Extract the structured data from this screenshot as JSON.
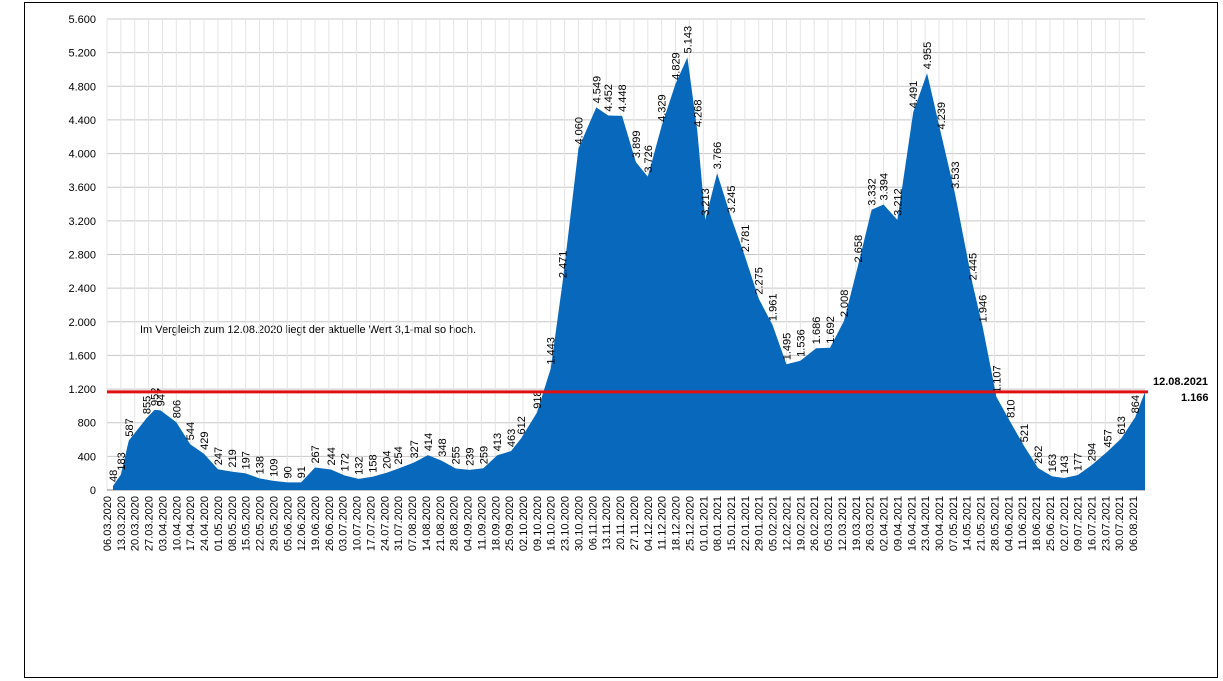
{
  "chart_data": {
    "type": "area",
    "annotation": "Im Vergleich zum 12.08.2020 liegt der aktuelle Wert 3,1-mal so hoch.",
    "end_date": "12.08.2021",
    "reference_line": {
      "color": "#e01010"
    },
    "x": [
      3,
      7,
      11,
      20,
      24,
      27,
      35,
      42,
      49,
      56,
      63,
      70,
      77,
      84,
      91,
      98,
      105,
      113,
      120,
      127,
      134,
      141,
      147,
      155,
      162,
      169,
      176,
      183,
      190,
      197,
      204,
      209,
      217,
      224,
      230,
      238,
      247,
      253,
      260,
      267,
      273,
      280,
      287,
      293,
      298,
      302,
      308,
      315,
      322,
      329,
      336,
      343,
      350,
      358,
      365,
      372,
      379,
      386,
      392,
      399,
      407,
      414,
      421,
      428,
      437,
      442,
      449,
      456,
      463,
      470,
      477,
      483,
      490,
      497,
      505,
      512,
      519,
      524
    ],
    "series": [
      {
        "color": "#0868bc",
        "values": [
          48,
          183,
          587,
          855,
          952,
          947,
          806,
          544,
          429,
          247,
          219,
          197,
          138,
          109,
          90,
          91,
          267,
          244,
          172,
          132,
          158,
          204,
          254,
          327,
          414,
          348,
          255,
          239,
          259,
          413,
          463,
          612,
          918,
          1443,
          2471,
          4060,
          4549,
          4452,
          4448,
          3899,
          3726,
          4329,
          4829,
          5143,
          4268,
          3213,
          3766,
          3245,
          2781,
          2275,
          1961,
          1495,
          1536,
          1686,
          1692,
          2008,
          2658,
          3332,
          3394,
          3212,
          4491,
          4955,
          4239,
          3533,
          2445,
          1946,
          1107,
          810,
          521,
          262,
          163,
          143,
          177,
          294,
          457,
          613,
          864,
          1166
        ],
        "value_labels": [
          "48",
          "183",
          "587",
          "855",
          "952",
          "947",
          "806",
          "544",
          "429",
          "247",
          "219",
          "197",
          "138",
          "109",
          "90",
          "91",
          "267",
          "244",
          "172",
          "132",
          "158",
          "204",
          "254",
          "327",
          "414",
          "348",
          "255",
          "239",
          "259",
          "413",
          "463",
          "612",
          "918",
          "1.443",
          "2.471",
          "4.060",
          "4.549",
          "4.452",
          "4.448",
          "3.899",
          "3.726",
          "4.329",
          "4.829",
          "5.143",
          "4.268",
          "3.213",
          "3.766",
          "3.245",
          "2.781",
          "2.275",
          "1.961",
          "1.495",
          "1.536",
          "1.686",
          "1.692",
          "2.008",
          "2.658",
          "3.332",
          "3.394",
          "3.212",
          "4.491",
          "4.955",
          "4.239",
          "3.533",
          "2.445",
          "1.946",
          "1.107",
          "810",
          "521",
          "262",
          "163",
          "143",
          "177",
          "294",
          "457",
          "613",
          "864",
          "1.166"
        ]
      }
    ],
    "xlim": [
      0,
      524
    ],
    "xticks": [
      {
        "value": 0,
        "label": "06.03.2020"
      },
      {
        "value": 7,
        "label": "13.03.2020"
      },
      {
        "value": 14,
        "label": "20.03.2020"
      },
      {
        "value": 21,
        "label": "27.03.2020"
      },
      {
        "value": 28,
        "label": "03.04.2020"
      },
      {
        "value": 35,
        "label": "10.04.2020"
      },
      {
        "value": 42,
        "label": "17.04.2020"
      },
      {
        "value": 49,
        "label": "24.04.2020"
      },
      {
        "value": 56,
        "label": "01.05.2020"
      },
      {
        "value": 63,
        "label": "08.05.2020"
      },
      {
        "value": 70,
        "label": "15.05.2020"
      },
      {
        "value": 77,
        "label": "22.05.2020"
      },
      {
        "value": 84,
        "label": "29.05.2020"
      },
      {
        "value": 91,
        "label": "05.06.2020"
      },
      {
        "value": 98,
        "label": "12.06.2020"
      },
      {
        "value": 105,
        "label": "19.06.2020"
      },
      {
        "value": 112,
        "label": "26.06.2020"
      },
      {
        "value": 119,
        "label": "03.07.2020"
      },
      {
        "value": 126,
        "label": "10.07.2020"
      },
      {
        "value": 133,
        "label": "17.07.2020"
      },
      {
        "value": 140,
        "label": "24.07.2020"
      },
      {
        "value": 147,
        "label": "31.07.2020"
      },
      {
        "value": 154,
        "label": "07.08.2020"
      },
      {
        "value": 161,
        "label": "14.08.2020"
      },
      {
        "value": 168,
        "label": "21.08.2020"
      },
      {
        "value": 175,
        "label": "28.08.2020"
      },
      {
        "value": 182,
        "label": "04.09.2020"
      },
      {
        "value": 189,
        "label": "11.09.2020"
      },
      {
        "value": 196,
        "label": "18.09.2020"
      },
      {
        "value": 203,
        "label": "25.09.2020"
      },
      {
        "value": 210,
        "label": "02.10.2020"
      },
      {
        "value": 217,
        "label": "09.10.2020"
      },
      {
        "value": 224,
        "label": "16.10.2020"
      },
      {
        "value": 231,
        "label": "23.10.2020"
      },
      {
        "value": 238,
        "label": "30.10.2020"
      },
      {
        "value": 245,
        "label": "06.11.2020"
      },
      {
        "value": 252,
        "label": "13.11.2020"
      },
      {
        "value": 259,
        "label": "20.11.2020"
      },
      {
        "value": 266,
        "label": "27.11.2020"
      },
      {
        "value": 273,
        "label": "04.12.2020"
      },
      {
        "value": 280,
        "label": "11.12.2020"
      },
      {
        "value": 287,
        "label": "18.12.2020"
      },
      {
        "value": 294,
        "label": "25.12.2020"
      },
      {
        "value": 301,
        "label": "01.01.2021"
      },
      {
        "value": 308,
        "label": "08.01.2021"
      },
      {
        "value": 315,
        "label": "15.01.2021"
      },
      {
        "value": 322,
        "label": "22.01.2021"
      },
      {
        "value": 329,
        "label": "29.01.2021"
      },
      {
        "value": 336,
        "label": "05.02.2021"
      },
      {
        "value": 343,
        "label": "12.02.2021"
      },
      {
        "value": 350,
        "label": "19.02.2021"
      },
      {
        "value": 357,
        "label": "26.02.2021"
      },
      {
        "value": 364,
        "label": "05.03.2021"
      },
      {
        "value": 371,
        "label": "12.03.2021"
      },
      {
        "value": 378,
        "label": "19.03.2021"
      },
      {
        "value": 385,
        "label": "26.03.2021"
      },
      {
        "value": 392,
        "label": "02.04.2021"
      },
      {
        "value": 399,
        "label": "09.04.2021"
      },
      {
        "value": 406,
        "label": "16.04.2021"
      },
      {
        "value": 413,
        "label": "23.04.2021"
      },
      {
        "value": 420,
        "label": "30.04.2021"
      },
      {
        "value": 427,
        "label": "07.05.2021"
      },
      {
        "value": 434,
        "label": "14.05.2021"
      },
      {
        "value": 441,
        "label": "21.05.2021"
      },
      {
        "value": 448,
        "label": "28.05.2021"
      },
      {
        "value": 455,
        "label": "04.06.2021"
      },
      {
        "value": 462,
        "label": "11.06.2021"
      },
      {
        "value": 469,
        "label": "18.06.2021"
      },
      {
        "value": 476,
        "label": "25.06.2021"
      },
      {
        "value": 483,
        "label": "02.07.2021"
      },
      {
        "value": 490,
        "label": "09.07.2021"
      },
      {
        "value": 497,
        "label": "16.07.2021"
      },
      {
        "value": 504,
        "label": "23.07.2021"
      },
      {
        "value": 511,
        "label": "30.07.2021"
      },
      {
        "value": 518,
        "label": "06.08.2021"
      }
    ],
    "ylim": [
      0,
      5600
    ],
    "yticks": [
      0,
      400,
      800,
      {
        "value": 1200,
        "label": "1.200"
      },
      {
        "value": 1600,
        "label": "1.600"
      },
      {
        "value": 2000,
        "label": "2.000"
      },
      {
        "value": 2400,
        "label": "2.400"
      },
      {
        "value": 2800,
        "label": "2.800"
      },
      {
        "value": 3200,
        "label": "3.200"
      },
      {
        "value": 3600,
        "label": "3.600"
      },
      {
        "value": 4000,
        "label": "4.000"
      },
      {
        "value": 4400,
        "label": "4.400"
      },
      {
        "value": 4800,
        "label": "4.800"
      },
      {
        "value": 5200,
        "label": "5.200"
      },
      {
        "value": 5600,
        "label": "5.600"
      }
    ],
    "grid": true
  }
}
